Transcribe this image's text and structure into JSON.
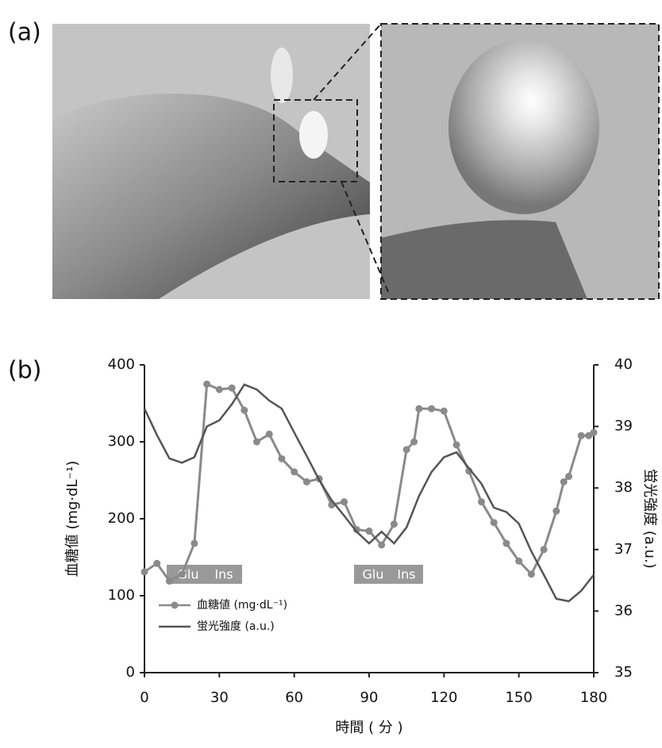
{
  "panels": {
    "a": "(a)",
    "b": "(b)"
  },
  "chart_data": {
    "type": "line",
    "xlabel": "時間 ( 分 )",
    "ylabel": "血糖値 (mg·dL⁻¹)",
    "y2label": "蛍光強度 (a.u.)",
    "xlim": [
      0,
      180
    ],
    "xticks": [
      0,
      30,
      60,
      90,
      120,
      150,
      180
    ],
    "ylim": [
      0,
      400
    ],
    "yticks": [
      0,
      100,
      200,
      300,
      400
    ],
    "y2lim": [
      35,
      40
    ],
    "y2ticks": [
      35,
      36,
      37,
      38,
      39,
      40
    ],
    "annotations": [
      "Glu",
      "Ins",
      "Glu",
      "Ins"
    ],
    "series": [
      {
        "name": "血糖値 (mg·dL⁻¹)",
        "color": "#8a8a8a",
        "markers": true,
        "x": [
          0,
          5,
          10,
          15,
          20,
          25,
          30,
          35,
          40,
          45,
          50,
          55,
          60,
          65,
          70,
          75,
          80,
          85,
          90,
          95,
          100,
          105,
          108,
          110,
          115,
          120,
          125,
          130,
          135,
          140,
          145,
          150,
          155,
          160,
          165,
          168,
          170,
          175,
          178,
          180
        ],
        "values": [
          131,
          142,
          119,
          128,
          168,
          375,
          368,
          370,
          341,
          300,
          310,
          278,
          261,
          248,
          252,
          218,
          222,
          186,
          184,
          166,
          193,
          290,
          300,
          343,
          343,
          340,
          296,
          262,
          222,
          195,
          168,
          145,
          128,
          160,
          210,
          248,
          255,
          308,
          308,
          312
        ]
      },
      {
        "name": "蛍光強度 (a.u.)",
        "color": "#555555",
        "markers": false,
        "axis": "y2",
        "x": [
          0,
          5,
          10,
          15,
          20,
          25,
          30,
          35,
          40,
          45,
          50,
          55,
          60,
          65,
          70,
          75,
          80,
          85,
          90,
          95,
          100,
          105,
          110,
          115,
          120,
          125,
          130,
          135,
          140,
          145,
          150,
          155,
          160,
          165,
          170,
          175,
          180
        ],
        "values": [
          39.29,
          38.86,
          38.48,
          38.41,
          38.5,
          39.0,
          39.1,
          39.36,
          39.68,
          39.6,
          39.42,
          39.29,
          38.9,
          38.52,
          38.13,
          37.8,
          37.55,
          37.29,
          37.1,
          37.29,
          37.1,
          37.36,
          37.87,
          38.26,
          38.5,
          38.58,
          38.32,
          38.07,
          37.68,
          37.61,
          37.42,
          36.97,
          36.59,
          36.2,
          36.16,
          36.33,
          36.59
        ]
      }
    ]
  }
}
